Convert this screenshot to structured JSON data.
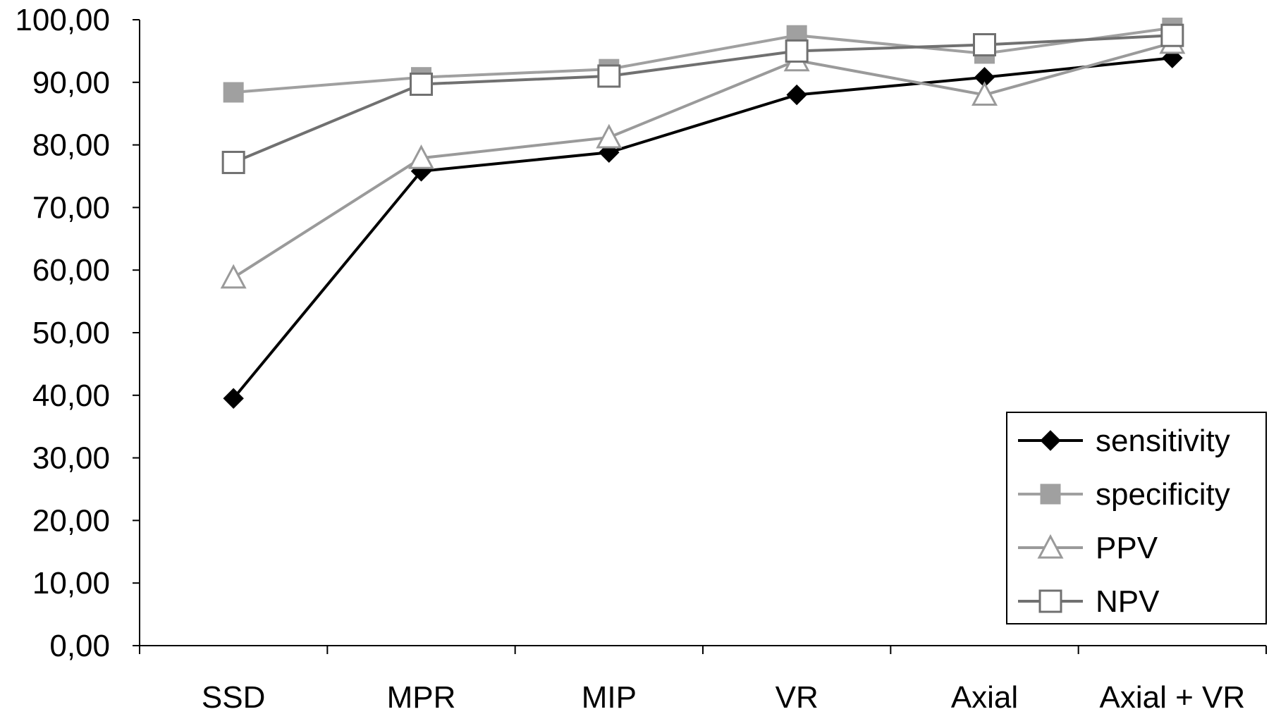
{
  "chart_data": {
    "type": "line",
    "title": "",
    "xlabel": "",
    "ylabel": "",
    "categories": [
      "SSD",
      "MPR",
      "MIP",
      "VR",
      "Axial",
      "Axial + VR"
    ],
    "ylim": [
      0,
      100
    ],
    "yticks": [
      0,
      10,
      20,
      30,
      40,
      50,
      60,
      70,
      80,
      90,
      100
    ],
    "ytick_labels": [
      "0,00",
      "10,00",
      "20,00",
      "30,00",
      "40,00",
      "50,00",
      "60,00",
      "70,00",
      "80,00",
      "90,00",
      "100,00"
    ],
    "grid": false,
    "legend_position": "bottom-right",
    "series": [
      {
        "name": "sensitivity",
        "values": [
          39.5,
          75.8,
          78.8,
          88.0,
          90.8,
          93.9
        ],
        "color": "#000000",
        "marker": "diamond-filled"
      },
      {
        "name": "specificity",
        "values": [
          88.4,
          90.8,
          92.1,
          97.5,
          94.6,
          98.7
        ],
        "color": "#a0a0a0",
        "marker": "square-filled"
      },
      {
        "name": "PPV",
        "values": [
          58.8,
          77.9,
          81.2,
          93.5,
          88.0,
          96.3
        ],
        "color": "#9a9a9a",
        "marker": "triangle-open"
      },
      {
        "name": "NPV",
        "values": [
          77.2,
          89.7,
          91.0,
          95.0,
          96.0,
          97.5
        ],
        "color": "#707070",
        "marker": "square-open"
      }
    ]
  }
}
